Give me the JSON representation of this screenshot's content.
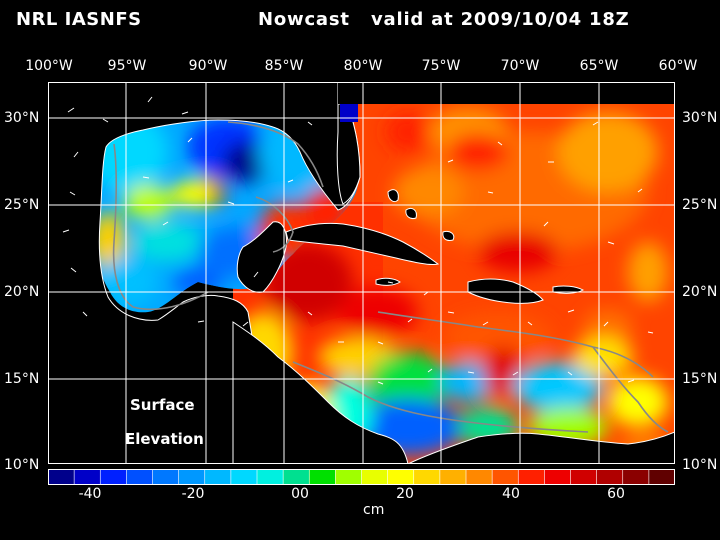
{
  "title": {
    "left": "NRL IASNFS",
    "right": "Nowcast   valid at 2009/10/04 18Z"
  },
  "longitude_labels": [
    "100°W",
    "95°W",
    "90°W",
    "85°W",
    "80°W",
    "75°W",
    "70°W",
    "65°W",
    "60°W"
  ],
  "latitude_labels": [
    "30°N",
    "25°N",
    "20°N",
    "15°N",
    "10°N"
  ],
  "colorbar": {
    "tick_labels": [
      "-40",
      "-20",
      "00",
      "20",
      "40",
      "60"
    ],
    "colors": [
      "#00008b",
      "#0000c8",
      "#0020ff",
      "#0050ff",
      "#0078ff",
      "#0098ff",
      "#00b8ff",
      "#00d8ff",
      "#00f0e0",
      "#00e090",
      "#00e000",
      "#a0ff00",
      "#e8ff00",
      "#ffff00",
      "#ffd800",
      "#ffb000",
      "#ff8800",
      "#ff5500",
      "#ff2000",
      "#ee0000",
      "#d00000",
      "#b00000",
      "#8b0000",
      "#600000"
    ],
    "unit": "cm"
  },
  "overlay_text": {
    "line1": "Surface",
    "line2": "Elevation"
  },
  "map": {
    "lon_range": [
      -100,
      -60
    ],
    "lat_range": [
      10,
      31
    ],
    "variable": "sea surface elevation",
    "ocean_background": "#ff4400",
    "land_color": "#000000",
    "coastline_color": "#ffffff",
    "grid_color": "#ffffff",
    "isobath_color": "#888888"
  }
}
